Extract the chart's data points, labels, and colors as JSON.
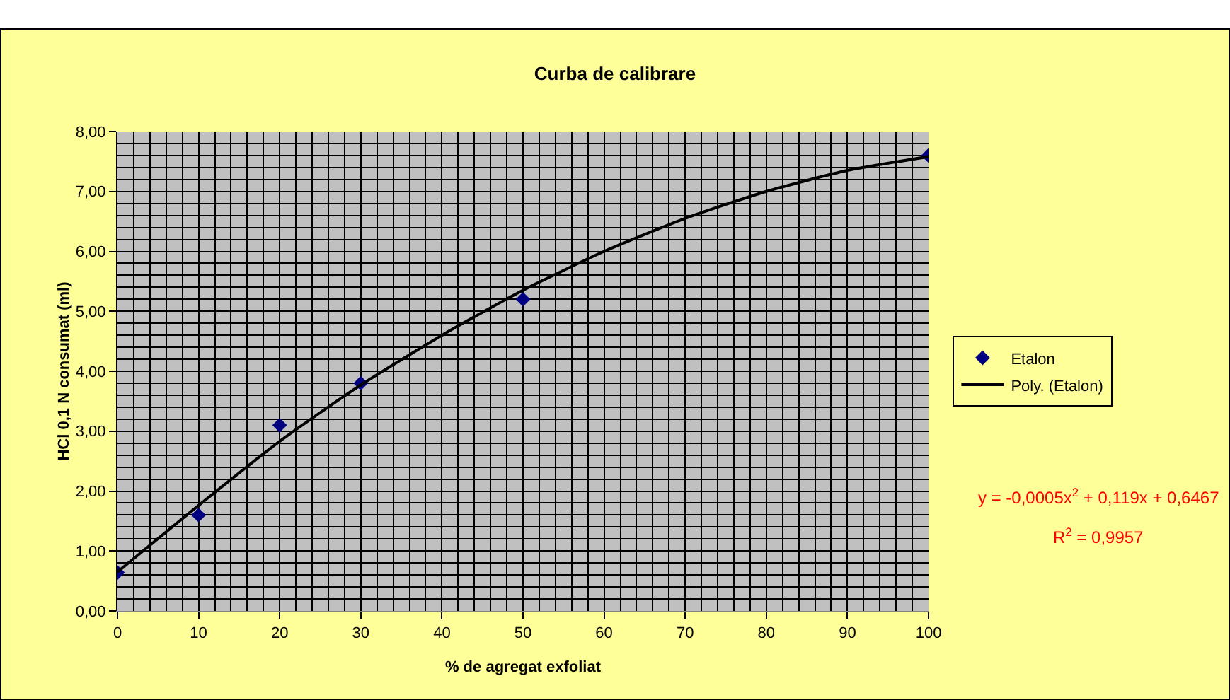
{
  "chart_data": {
    "type": "scatter",
    "title": "Curba de calibrare",
    "xlabel": "% de agregat exfoliat",
    "ylabel": "HCl 0,1 N consumat (ml)",
    "series": [
      {
        "name": "Etalon",
        "color": "#000080",
        "marker": "diamond",
        "x": [
          0,
          10,
          20,
          30,
          50,
          100
        ],
        "values": [
          0.64,
          1.6,
          3.1,
          3.8,
          5.2,
          7.6
        ]
      },
      {
        "name": "Poly. (Etalon)",
        "type": "line",
        "color": "#000000",
        "marker": "none",
        "line_style": "solid",
        "x": [
          0,
          10,
          20,
          30,
          40,
          50,
          60,
          70,
          80,
          90,
          100
        ],
        "values": [
          0.65,
          1.76,
          2.83,
          3.77,
          4.6,
          5.35,
          6.0,
          6.55,
          7.0,
          7.35,
          7.58
        ]
      }
    ],
    "xlim": [
      0,
      100
    ],
    "xticks": [
      0,
      10,
      20,
      30,
      40,
      50,
      60,
      70,
      80,
      90,
      100
    ],
    "ylim": [
      0,
      8
    ],
    "yticks": [
      {
        "value": 0,
        "label": "0,00"
      },
      {
        "value": 1,
        "label": "1,00"
      },
      {
        "value": 2,
        "label": "2,00"
      },
      {
        "value": 3,
        "label": "3,00"
      },
      {
        "value": 4,
        "label": "4,00"
      },
      {
        "value": 5,
        "label": "5,00"
      },
      {
        "value": 6,
        "label": "6,00"
      },
      {
        "value": 7,
        "label": "7,00"
      },
      {
        "value": 8,
        "label": "8,00"
      }
    ],
    "grid": true,
    "legend": "right",
    "annotations": [
      "y = -0,0005x$^{2}$ + 0,119x + 0,6467",
      "R$^{2}$ = 0,9957"
    ]
  }
}
